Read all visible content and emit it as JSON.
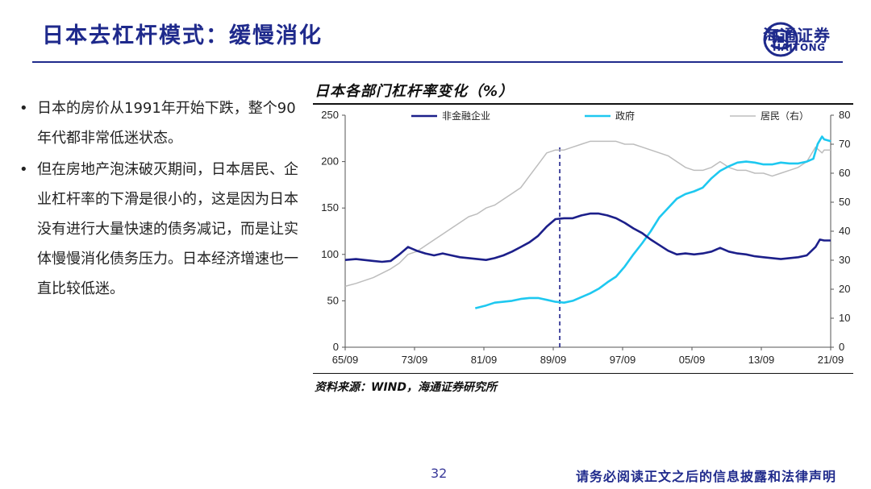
{
  "header": {
    "title": "日本去杠杆模式：缓慢消化",
    "logo_cn": "海通证券",
    "logo_en": "HAITONG"
  },
  "bullets": [
    "日本的房价从1991年开始下跌，整个90年代都非常低迷状态。",
    "但在房地产泡沫破灭期间，日本居民、企业杠杆率的下滑是很小的，这是因为日本没有进行大量快速的债务减记，而是让实体慢慢消化债务压力。日本经济增速也一直比较低迷。"
  ],
  "chart_header": {
    "title": "日本各部门杠杆率变化（%）"
  },
  "source": "资料来源：WIND，海通证券研究所",
  "footer": {
    "page": "32",
    "disclaimer": "请务必阅读正文之后的信息披露和法律声明"
  },
  "colors": {
    "brand": "#1f2a8c",
    "series1": "#1c1f8a",
    "series2": "#1ec8f0",
    "series3": "#bdbdbd"
  },
  "chart_data": {
    "type": "line",
    "x_tick_labels": [
      "65/09",
      "73/09",
      "81/09",
      "89/09",
      "97/09",
      "05/09",
      "13/09",
      "21/09"
    ],
    "y_left": {
      "ticks": [
        0,
        50,
        100,
        150,
        200,
        250
      ],
      "range": [
        0,
        250
      ]
    },
    "y_right": {
      "ticks": [
        0,
        10,
        20,
        30,
        40,
        50,
        60,
        70,
        80
      ],
      "range": [
        0,
        80
      ]
    },
    "vertical_marker": {
      "x": 1990.5,
      "style": "dashed"
    },
    "series": [
      {
        "name": "非金融企业",
        "axis": "left",
        "color": "#1c1f8a",
        "points": [
          [
            1965.75,
            94
          ],
          [
            1967,
            95
          ],
          [
            1969,
            93
          ],
          [
            1970,
            92
          ],
          [
            1971,
            93
          ],
          [
            1972,
            100
          ],
          [
            1973,
            108
          ],
          [
            1974,
            104
          ],
          [
            1975,
            101
          ],
          [
            1976,
            99
          ],
          [
            1977,
            101
          ],
          [
            1978,
            99
          ],
          [
            1979,
            97
          ],
          [
            1980,
            96
          ],
          [
            1981,
            95
          ],
          [
            1982,
            94
          ],
          [
            1983,
            96
          ],
          [
            1984,
            99
          ],
          [
            1985,
            103
          ],
          [
            1986,
            108
          ],
          [
            1987,
            113
          ],
          [
            1988,
            120
          ],
          [
            1989,
            130
          ],
          [
            1990,
            138
          ],
          [
            1991,
            139
          ],
          [
            1992,
            139
          ],
          [
            1993,
            142
          ],
          [
            1994,
            144
          ],
          [
            1995,
            144
          ],
          [
            1996,
            142
          ],
          [
            1997,
            139
          ],
          [
            1998,
            134
          ],
          [
            1999,
            128
          ],
          [
            2000,
            123
          ],
          [
            2001,
            116
          ],
          [
            2002,
            110
          ],
          [
            2003,
            104
          ],
          [
            2004,
            100
          ],
          [
            2005,
            101
          ],
          [
            2006,
            100
          ],
          [
            2007,
            101
          ],
          [
            2008,
            103
          ],
          [
            2009,
            107
          ],
          [
            2010,
            103
          ],
          [
            2011,
            101
          ],
          [
            2012,
            100
          ],
          [
            2013,
            98
          ],
          [
            2014,
            97
          ],
          [
            2015,
            96
          ],
          [
            2016,
            95
          ],
          [
            2017,
            96
          ],
          [
            2018,
            97
          ],
          [
            2019,
            99
          ],
          [
            2020,
            108
          ],
          [
            2020.5,
            116
          ],
          [
            2021,
            115
          ],
          [
            2021.75,
            115
          ]
        ]
      },
      {
        "name": "政府",
        "axis": "left",
        "color": "#1ec8f0",
        "points": [
          [
            1980.75,
            42
          ],
          [
            1982,
            45
          ],
          [
            1983,
            48
          ],
          [
            1984,
            49
          ],
          [
            1985,
            50
          ],
          [
            1986,
            52
          ],
          [
            1987,
            53
          ],
          [
            1988,
            53
          ],
          [
            1989,
            51
          ],
          [
            1990,
            49
          ],
          [
            1991,
            48
          ],
          [
            1992,
            50
          ],
          [
            1993,
            54
          ],
          [
            1994,
            58
          ],
          [
            1995,
            63
          ],
          [
            1996,
            70
          ],
          [
            1997,
            76
          ],
          [
            1998,
            87
          ],
          [
            1999,
            100
          ],
          [
            2000,
            112
          ],
          [
            2001,
            125
          ],
          [
            2002,
            140
          ],
          [
            2003,
            150
          ],
          [
            2004,
            160
          ],
          [
            2005,
            165
          ],
          [
            2006,
            168
          ],
          [
            2007,
            172
          ],
          [
            2008,
            182
          ],
          [
            2009,
            190
          ],
          [
            2010,
            195
          ],
          [
            2011,
            199
          ],
          [
            2012,
            200
          ],
          [
            2013,
            199
          ],
          [
            2014,
            197
          ],
          [
            2015,
            197
          ],
          [
            2016,
            199
          ],
          [
            2017,
            198
          ],
          [
            2018,
            198
          ],
          [
            2019,
            200
          ],
          [
            2019.75,
            203
          ],
          [
            2020.25,
            219
          ],
          [
            2020.75,
            227
          ],
          [
            2021,
            224
          ],
          [
            2021.75,
            222
          ]
        ]
      },
      {
        "name": "居民（右）",
        "axis": "right",
        "color": "#bdbdbd",
        "points": [
          [
            1965.75,
            21
          ],
          [
            1967,
            22
          ],
          [
            1969,
            24
          ],
          [
            1971,
            27
          ],
          [
            1972,
            29
          ],
          [
            1973,
            32
          ],
          [
            1974,
            33
          ],
          [
            1975,
            35
          ],
          [
            1976,
            37
          ],
          [
            1977,
            39
          ],
          [
            1978,
            41
          ],
          [
            1979,
            43
          ],
          [
            1980,
            45
          ],
          [
            1981,
            46
          ],
          [
            1982,
            48
          ],
          [
            1983,
            49
          ],
          [
            1984,
            51
          ],
          [
            1985,
            53
          ],
          [
            1986,
            55
          ],
          [
            1987,
            59
          ],
          [
            1988,
            63
          ],
          [
            1989,
            67
          ],
          [
            1990,
            68
          ],
          [
            1991,
            68
          ],
          [
            1992,
            69
          ],
          [
            1993,
            70
          ],
          [
            1994,
            71
          ],
          [
            1995,
            71
          ],
          [
            1996,
            71
          ],
          [
            1997,
            71
          ],
          [
            1998,
            70
          ],
          [
            1999,
            70
          ],
          [
            2000,
            69
          ],
          [
            2001,
            68
          ],
          [
            2002,
            67
          ],
          [
            2003,
            66
          ],
          [
            2004,
            64
          ],
          [
            2005,
            62
          ],
          [
            2006,
            61
          ],
          [
            2007,
            61
          ],
          [
            2008,
            62
          ],
          [
            2009,
            64
          ],
          [
            2010,
            62
          ],
          [
            2011,
            61
          ],
          [
            2012,
            61
          ],
          [
            2013,
            60
          ],
          [
            2014,
            60
          ],
          [
            2015,
            59
          ],
          [
            2016,
            60
          ],
          [
            2017,
            61
          ],
          [
            2018,
            62
          ],
          [
            2019,
            64
          ],
          [
            2020,
            69
          ],
          [
            2020.75,
            67
          ],
          [
            2021,
            68
          ],
          [
            2021.75,
            68
          ]
        ]
      }
    ]
  }
}
